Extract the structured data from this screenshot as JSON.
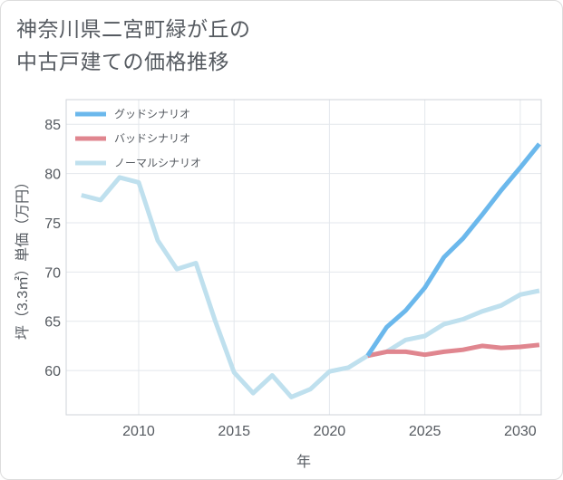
{
  "title_lines": [
    "神奈川県二宮町緑が丘の",
    "中古戸建ての価格推移"
  ],
  "chart_data": {
    "type": "line",
    "xlabel": "年",
    "ylabel": "坪（3.3㎡）単価（万円）",
    "xlim": [
      2006.2,
      2031.1
    ],
    "ylim": [
      55.5,
      87.5
    ],
    "x_ticks": [
      2010,
      2015,
      2020,
      2025,
      2030
    ],
    "y_ticks": [
      60,
      65,
      70,
      75,
      80,
      85
    ],
    "grid": true,
    "legend_position": "top-left",
    "series": [
      {
        "name": "グッドシナリオ",
        "color": "#6bb8ec",
        "x": [
          2022,
          2023,
          2024,
          2025,
          2026,
          2027,
          2028,
          2029,
          2030,
          2031
        ],
        "y": [
          61.5,
          64.4,
          66.1,
          68.4,
          71.5,
          73.4,
          75.8,
          78.3,
          80.6,
          83.0
        ]
      },
      {
        "name": "バッドシナリオ",
        "color": "#e0868f",
        "x": [
          2022,
          2023,
          2024,
          2025,
          2026,
          2027,
          2028,
          2029,
          2030,
          2031
        ],
        "y": [
          61.5,
          61.9,
          61.9,
          61.6,
          61.9,
          62.1,
          62.5,
          62.3,
          62.4,
          62.6
        ]
      },
      {
        "name": "ノーマルシナリオ",
        "color": "#bfe0ee",
        "x": [
          2007,
          2008,
          2009,
          2010,
          2011,
          2012,
          2013,
          2014,
          2015,
          2016,
          2017,
          2018,
          2019,
          2020,
          2021,
          2022,
          2023,
          2024,
          2025,
          2026,
          2027,
          2028,
          2029,
          2030,
          2031
        ],
        "y": [
          77.8,
          77.3,
          79.6,
          79.1,
          73.2,
          70.3,
          70.9,
          65.1,
          59.8,
          57.7,
          59.5,
          57.3,
          58.1,
          59.9,
          60.3,
          61.5,
          61.9,
          63.1,
          63.5,
          64.7,
          65.2,
          66.0,
          66.6,
          67.7,
          68.1
        ]
      }
    ]
  }
}
